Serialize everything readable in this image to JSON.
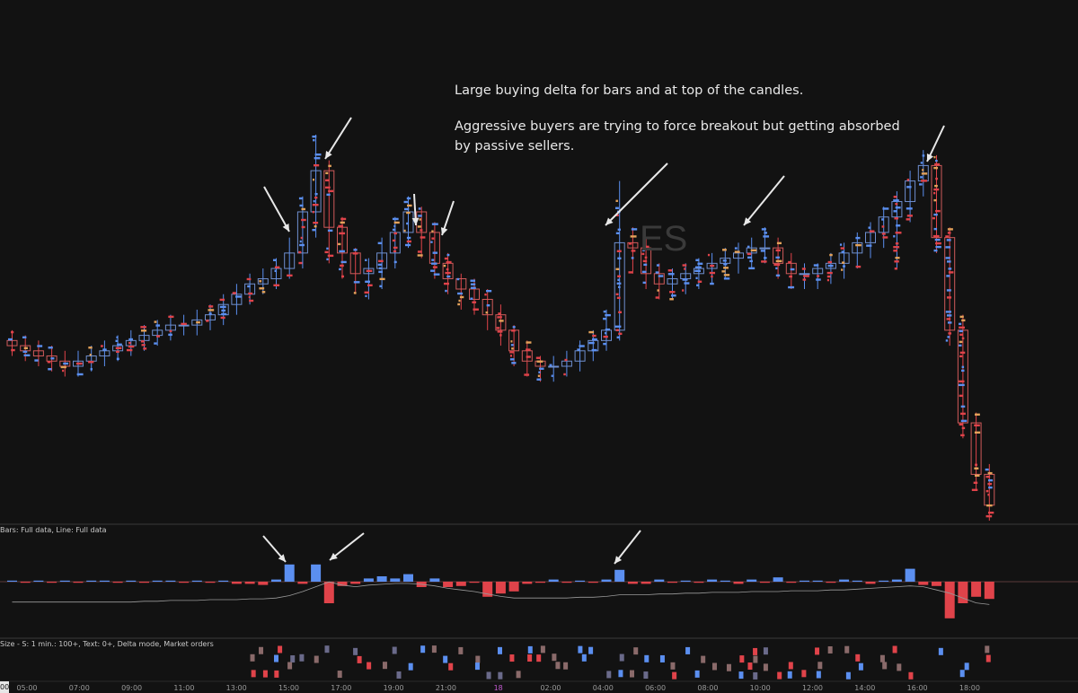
{
  "symbol": "ES",
  "annotation": {
    "line1": "Large buying delta for bars and at top of the candles.",
    "line2": "Aggressive buyers are trying to force breakout but getting absorbed",
    "line3": "by passive sellers."
  },
  "panels": {
    "delta_label": "Bars: Full data, Line: Full data",
    "trades_label": "Size - S: 1 min.: 100+, Text: 0+, Delta mode, Market orders"
  },
  "last_price_tag": "00",
  "colors": {
    "background": "#121212",
    "bull": "#5b8ff0",
    "bear": "#e0434a",
    "orange": "#e3a25a",
    "box_bull": "#6f8fcf",
    "box_bear": "#d05a5a",
    "separator": "#3a3a3a",
    "arrow": "#e8e8e8"
  },
  "time_axis": [
    "05:00",
    "07:00",
    "09:00",
    "11:00",
    "13:00",
    "15:00",
    "17:00",
    "19:00",
    "21:00",
    "18",
    "02:00",
    "04:00",
    "06:00",
    "08:00",
    "10:00",
    "12:00",
    "14:00",
    "16:00",
    "18:00"
  ],
  "chart_data": [
    {
      "type": "candlestick",
      "title": "ES",
      "unit": "relative price",
      "x": [
        "05:00",
        "05:30",
        "06:00",
        "06:30",
        "07:00",
        "07:30",
        "08:00",
        "08:30",
        "09:00",
        "09:30",
        "10:00",
        "10:30",
        "11:00",
        "11:30",
        "12:00",
        "12:30",
        "13:00",
        "13:30",
        "14:00",
        "14:30",
        "15:00",
        "15:30",
        "16:00",
        "16:30",
        "17:00",
        "17:30",
        "18:00",
        "18:30",
        "19:00",
        "19:30",
        "20:00",
        "20:30",
        "21:00",
        "21:30",
        "22:00",
        "22:30",
        "23:00",
        "23:30",
        "00:00",
        "00:30",
        "01:00",
        "01:30",
        "02:00",
        "02:30",
        "03:00",
        "03:30",
        "04:00",
        "04:30",
        "05:00",
        "05:30",
        "06:00",
        "06:30",
        "07:00",
        "07:30",
        "08:00",
        "08:30",
        "09:00",
        "09:30",
        "10:00",
        "10:30",
        "11:00",
        "11:30",
        "12:00",
        "12:30",
        "13:00",
        "13:30",
        "14:00",
        "14:30",
        "15:00",
        "15:30",
        "16:00",
        "16:30",
        "17:00",
        "17:30",
        "18:00"
      ],
      "open": [
        38,
        37,
        36,
        35,
        34,
        33,
        34,
        35,
        36,
        37,
        38,
        39,
        40,
        41,
        41,
        42,
        43,
        45,
        47,
        49,
        50,
        52,
        55,
        63,
        71,
        60,
        55,
        51,
        52,
        55,
        59,
        63,
        59,
        53,
        50,
        48,
        46,
        43,
        40,
        36,
        34,
        33,
        33,
        34,
        36,
        38,
        40,
        57,
        56,
        51,
        49,
        50,
        51,
        52,
        53,
        54,
        55,
        56,
        56,
        53,
        51,
        51,
        52,
        53,
        55,
        57,
        59,
        62,
        65,
        69,
        72,
        58,
        40,
        22,
        12
      ],
      "close": [
        37,
        36,
        35,
        34,
        33,
        34,
        35,
        36,
        37,
        38,
        39,
        40,
        41,
        41,
        42,
        43,
        45,
        47,
        49,
        50,
        52,
        55,
        63,
        71,
        60,
        55,
        51,
        52,
        55,
        59,
        63,
        59,
        53,
        50,
        48,
        46,
        43,
        40,
        36,
        34,
        33,
        33,
        34,
        36,
        38,
        40,
        57,
        56,
        51,
        49,
        50,
        51,
        52,
        53,
        54,
        55,
        56,
        56,
        53,
        51,
        51,
        52,
        53,
        55,
        57,
        59,
        62,
        65,
        69,
        72,
        58,
        40,
        22,
        12,
        6
      ],
      "high": [
        40,
        39,
        38,
        37,
        36,
        36,
        37,
        38,
        39,
        40,
        41,
        42,
        43,
        43,
        44,
        45,
        47,
        49,
        51,
        52,
        54,
        58,
        66,
        78,
        73,
        62,
        56,
        54,
        58,
        62,
        66,
        64,
        61,
        55,
        51,
        50,
        48,
        45,
        41,
        38,
        35,
        35,
        36,
        38,
        40,
        44,
        69,
        60,
        58,
        53,
        52,
        53,
        54,
        55,
        56,
        57,
        58,
        60,
        58,
        55,
        53,
        53,
        55,
        57,
        59,
        61,
        64,
        67,
        71,
        75,
        74,
        60,
        43,
        24,
        14
      ],
      "low": [
        35,
        34,
        33,
        32,
        31,
        31,
        32,
        33,
        34,
        35,
        36,
        37,
        38,
        39,
        39,
        40,
        41,
        43,
        45,
        47,
        48,
        50,
        52,
        58,
        53,
        50,
        47,
        46,
        48,
        52,
        56,
        54,
        50,
        47,
        44,
        43,
        40,
        37,
        33,
        31,
        30,
        30,
        31,
        32,
        34,
        36,
        38,
        51,
        48,
        46,
        46,
        47,
        48,
        49,
        50,
        51,
        52,
        53,
        50,
        48,
        48,
        48,
        49,
        50,
        52,
        54,
        56,
        52,
        61,
        66,
        55,
        37,
        19,
        9,
        3
      ]
    },
    {
      "type": "bar",
      "title": "Bars: Full data, Line: Full data",
      "x": [
        "05:00",
        "05:30",
        "06:00",
        "06:30",
        "07:00",
        "07:30",
        "08:00",
        "08:30",
        "09:00",
        "09:30",
        "10:00",
        "10:30",
        "11:00",
        "11:30",
        "12:00",
        "12:30",
        "13:00",
        "13:30",
        "14:00",
        "14:30",
        "15:00",
        "15:30",
        "16:00",
        "16:30",
        "17:00",
        "17:30",
        "18:00",
        "18:30",
        "19:00",
        "19:30",
        "20:00",
        "20:30",
        "21:00",
        "21:30",
        "22:00",
        "22:30",
        "23:00",
        "23:30",
        "00:00",
        "00:30",
        "01:00",
        "01:30",
        "02:00",
        "02:30",
        "03:00",
        "03:30",
        "04:00",
        "04:30",
        "05:00",
        "05:30",
        "06:00",
        "06:30",
        "07:00",
        "07:30",
        "08:00",
        "08:30",
        "09:00",
        "09:30",
        "10:00",
        "10:30",
        "11:00",
        "11:30",
        "12:00",
        "12:30",
        "13:00",
        "13:30",
        "14:00",
        "14:30",
        "15:00",
        "15:30",
        "16:00",
        "16:30",
        "17:00",
        "17:30",
        "18:00"
      ],
      "delta": [
        1,
        -1,
        1,
        -1,
        1,
        -1,
        1,
        1,
        -1,
        1,
        -1,
        1,
        1,
        -1,
        1,
        -1,
        1,
        -2,
        -2,
        -3,
        2,
        16,
        -2,
        16,
        -20,
        -4,
        -2,
        3,
        5,
        3,
        7,
        -5,
        3,
        -5,
        -4,
        -1,
        -14,
        -11,
        -9,
        -2,
        -1,
        2,
        -1,
        1,
        -1,
        2,
        11,
        -2,
        -2,
        2,
        -1,
        1,
        -1,
        2,
        1,
        -2,
        2,
        -1,
        4,
        -1,
        1,
        1,
        -1,
        2,
        1,
        -2,
        1,
        2,
        12,
        -3,
        -4,
        -34,
        -20,
        -14,
        -16
      ],
      "cumulative": [
        -23,
        -23,
        -23,
        -23,
        -23,
        -23,
        -23,
        -23,
        -23,
        -23,
        -22,
        -22,
        -21,
        -21,
        -21,
        -20,
        -20,
        -20,
        -19,
        -19,
        -18,
        -15,
        -10,
        -4,
        2,
        -2,
        -4,
        -2,
        -1,
        0,
        0,
        -1,
        -3,
        -6,
        -8,
        -10,
        -13,
        -16,
        -18,
        -18,
        -18,
        -18,
        -18,
        -17,
        -17,
        -16,
        -14,
        -14,
        -14,
        -13,
        -13,
        -12,
        -12,
        -11,
        -11,
        -11,
        -10,
        -10,
        -10,
        -9,
        -9,
        -9,
        -8,
        -8,
        -7,
        -6,
        -5,
        -4,
        -3,
        -4,
        -8,
        -12,
        -18,
        -24,
        -26
      ]
    }
  ]
}
